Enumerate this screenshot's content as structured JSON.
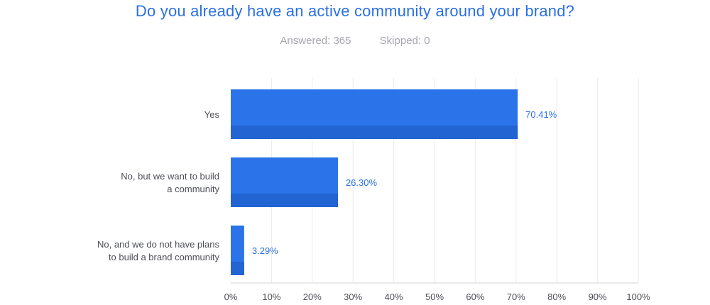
{
  "header": {
    "title": "Do you already have an active community around your brand?",
    "answered": "Answered: 365",
    "skipped": "Skipped: 0"
  },
  "colors": {
    "bar": "#2a73e8",
    "bar_shade": "#2264d1",
    "title": "#2a6fe6",
    "grid": "#e9ebee"
  },
  "chart_data": {
    "type": "bar",
    "orientation": "horizontal",
    "categories": [
      [
        "Yes"
      ],
      [
        "No, but we want to build",
        "a community"
      ],
      [
        "No, and we do not have plans",
        "to build a brand community"
      ]
    ],
    "values": [
      70.41,
      26.3,
      3.29
    ],
    "value_labels": [
      "70.41%",
      "26.30%",
      "3.29%"
    ],
    "xlim": [
      0,
      100
    ],
    "ticks": [
      "0%",
      "10%",
      "20%",
      "30%",
      "40%",
      "50%",
      "60%",
      "70%",
      "80%",
      "90%",
      "100%"
    ],
    "grid": true
  }
}
